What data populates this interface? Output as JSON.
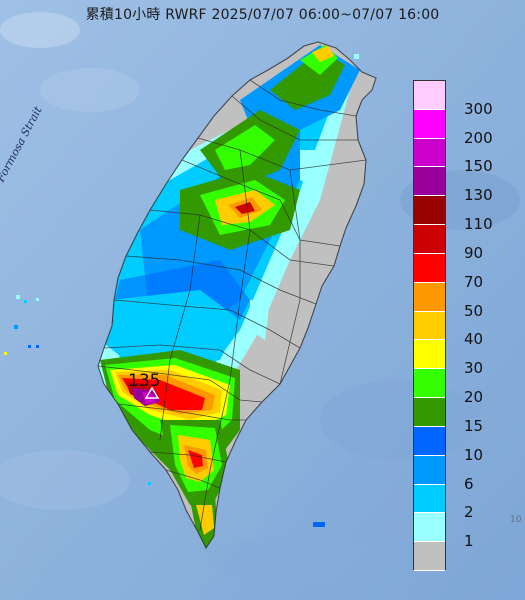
{
  "title": "累積10小時 RWRF 2025/07/07 06:00~07/07 16:00",
  "strait_label": "Formosa Strait",
  "peak_label": "135",
  "corner_text": "10",
  "legend": {
    "levels": [
      {
        "label": "300",
        "color": "#ffccff"
      },
      {
        "label": "200",
        "color": "#ff00ff"
      },
      {
        "label": "150",
        "color": "#cc00cc"
      },
      {
        "label": "130",
        "color": "#990099"
      },
      {
        "label": "110",
        "color": "#990000"
      },
      {
        "label": "90",
        "color": "#cc0000"
      },
      {
        "label": "70",
        "color": "#ff0000"
      },
      {
        "label": "50",
        "color": "#ff9900"
      },
      {
        "label": "40",
        "color": "#ffcc00"
      },
      {
        "label": "30",
        "color": "#ffff00"
      },
      {
        "label": "20",
        "color": "#33ff00"
      },
      {
        "label": "15",
        "color": "#339900"
      },
      {
        "label": "10",
        "color": "#0066ff"
      },
      {
        "label": "6",
        "color": "#0099ff"
      },
      {
        "label": "2",
        "color": "#00ccff"
      },
      {
        "label": "1",
        "color": "#99ffff"
      },
      {
        "label": "",
        "color": "#c0c0c0"
      }
    ]
  },
  "colors": {
    "sea": "#8fb3dd",
    "land_gray": "#c0c0c0",
    "boundary": "#2a2a2a"
  }
}
